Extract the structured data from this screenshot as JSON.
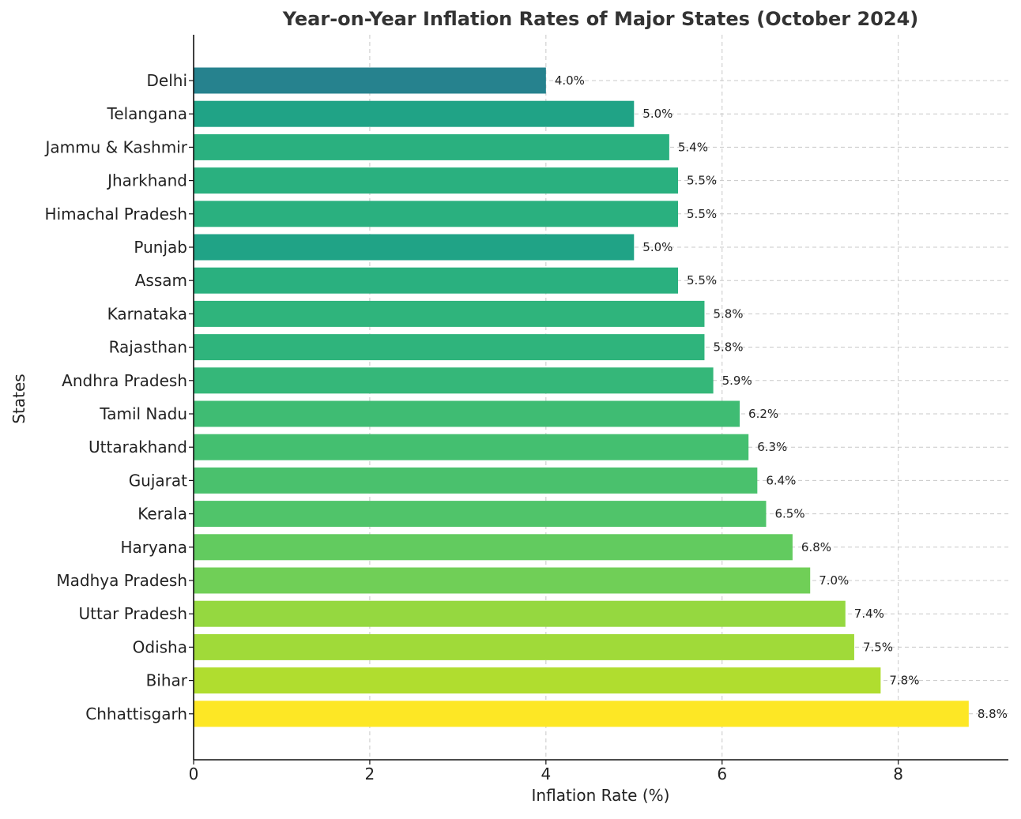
{
  "chart_data": {
    "type": "bar",
    "orientation": "horizontal",
    "title": "Year-on-Year Inflation Rates of Major States (October 2024)",
    "xlabel": "Inflation Rate (%)",
    "ylabel": "States",
    "xlim": [
      0,
      9.25
    ],
    "xticks": [
      0,
      2,
      4,
      6,
      8
    ],
    "grid": true,
    "value_label_suffix": "%",
    "categories": [
      "Delhi",
      "Telangana",
      "Jammu & Kashmir",
      "Jharkhand",
      "Himachal Pradesh",
      "Punjab",
      "Assam",
      "Karnataka",
      "Rajasthan",
      "Andhra Pradesh",
      "Tamil Nadu",
      "Uttarakhand",
      "Gujarat",
      "Kerala",
      "Haryana",
      "Madhya Pradesh",
      "Uttar Pradesh",
      "Odisha",
      "Bihar",
      "Chhattisgarh"
    ],
    "values": [
      4.0,
      5.0,
      5.4,
      5.5,
      5.5,
      5.0,
      5.5,
      5.8,
      5.8,
      5.9,
      6.2,
      6.3,
      6.4,
      6.5,
      6.8,
      7.0,
      7.4,
      7.5,
      7.8,
      8.8
    ],
    "colors": [
      "#26828e",
      "#20a386",
      "#2ab07f",
      "#2ab07f",
      "#2ab07f",
      "#20a386",
      "#2ab07f",
      "#2fb47c",
      "#2fb47c",
      "#35b779",
      "#3fbc73",
      "#44bf70",
      "#4ac16d",
      "#50c46a",
      "#62cb5f",
      "#70cf57",
      "#95d840",
      "#a0da39",
      "#b0dd2f",
      "#fde725"
    ]
  }
}
